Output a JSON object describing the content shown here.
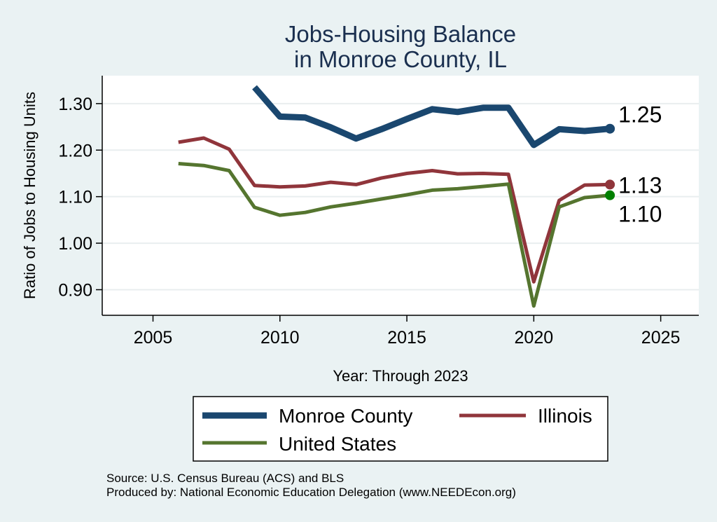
{
  "chart_data": {
    "type": "line",
    "title": [
      "Jobs-Housing Balance",
      "in Monroe County, IL"
    ],
    "xlabel": "Year: Through 2023",
    "ylabel": "Ratio of Jobs to Housing Units",
    "xlim": [
      2003,
      2026.5
    ],
    "ylim": [
      0.845,
      1.36
    ],
    "xticks": [
      2005,
      2010,
      2015,
      2020,
      2025
    ],
    "xtick_labels": [
      "2005",
      "2010",
      "2015",
      "2020",
      "2025"
    ],
    "yticks": [
      0.9,
      1.0,
      1.1,
      1.2,
      1.3
    ],
    "ytick_labels": [
      "0.90",
      "1.00",
      "1.10",
      "1.20",
      "1.30"
    ],
    "grid": true,
    "legend_position": "bottom",
    "series": [
      {
        "name": "Monroe County",
        "color": "#1a476f",
        "stroke": 9,
        "marker_color": "#1a476f",
        "end_label": "1.25",
        "x": [
          2009,
          2010,
          2011,
          2012,
          2013,
          2014,
          2015,
          2016,
          2017,
          2018,
          2019,
          2020,
          2021,
          2022,
          2023
        ],
        "y": [
          1.335,
          1.272,
          1.27,
          1.249,
          1.225,
          1.245,
          1.267,
          1.288,
          1.282,
          1.291,
          1.291,
          1.211,
          1.245,
          1.241,
          1.246
        ]
      },
      {
        "name": "Illinois",
        "color": "#90353b",
        "stroke": 5,
        "marker_color": "#90353b",
        "end_label": "1.13",
        "x": [
          2006,
          2007,
          2008,
          2009,
          2010,
          2011,
          2012,
          2013,
          2014,
          2015,
          2016,
          2017,
          2018,
          2019,
          2020,
          2021,
          2022,
          2023
        ],
        "y": [
          1.217,
          1.226,
          1.202,
          1.124,
          1.121,
          1.123,
          1.131,
          1.126,
          1.14,
          1.15,
          1.156,
          1.149,
          1.15,
          1.148,
          0.917,
          1.092,
          1.125,
          1.126
        ]
      },
      {
        "name": "United States",
        "color": "#55752f",
        "stroke": 5,
        "marker_color": "#008000",
        "end_label": "1.10",
        "x": [
          2006,
          2007,
          2008,
          2009,
          2010,
          2011,
          2012,
          2013,
          2014,
          2015,
          2016,
          2017,
          2018,
          2019,
          2020,
          2021,
          2022,
          2023
        ],
        "y": [
          1.171,
          1.167,
          1.156,
          1.077,
          1.06,
          1.066,
          1.078,
          1.086,
          1.095,
          1.104,
          1.114,
          1.117,
          1.122,
          1.127,
          0.865,
          1.078,
          1.098,
          1.103
        ]
      }
    ]
  },
  "notes": {
    "source": "Source: U.S. Census Bureau (ACS) and BLS",
    "produced_by": "Produced by: National Economic Education Delegation (www.NEEDEcon.org)"
  }
}
